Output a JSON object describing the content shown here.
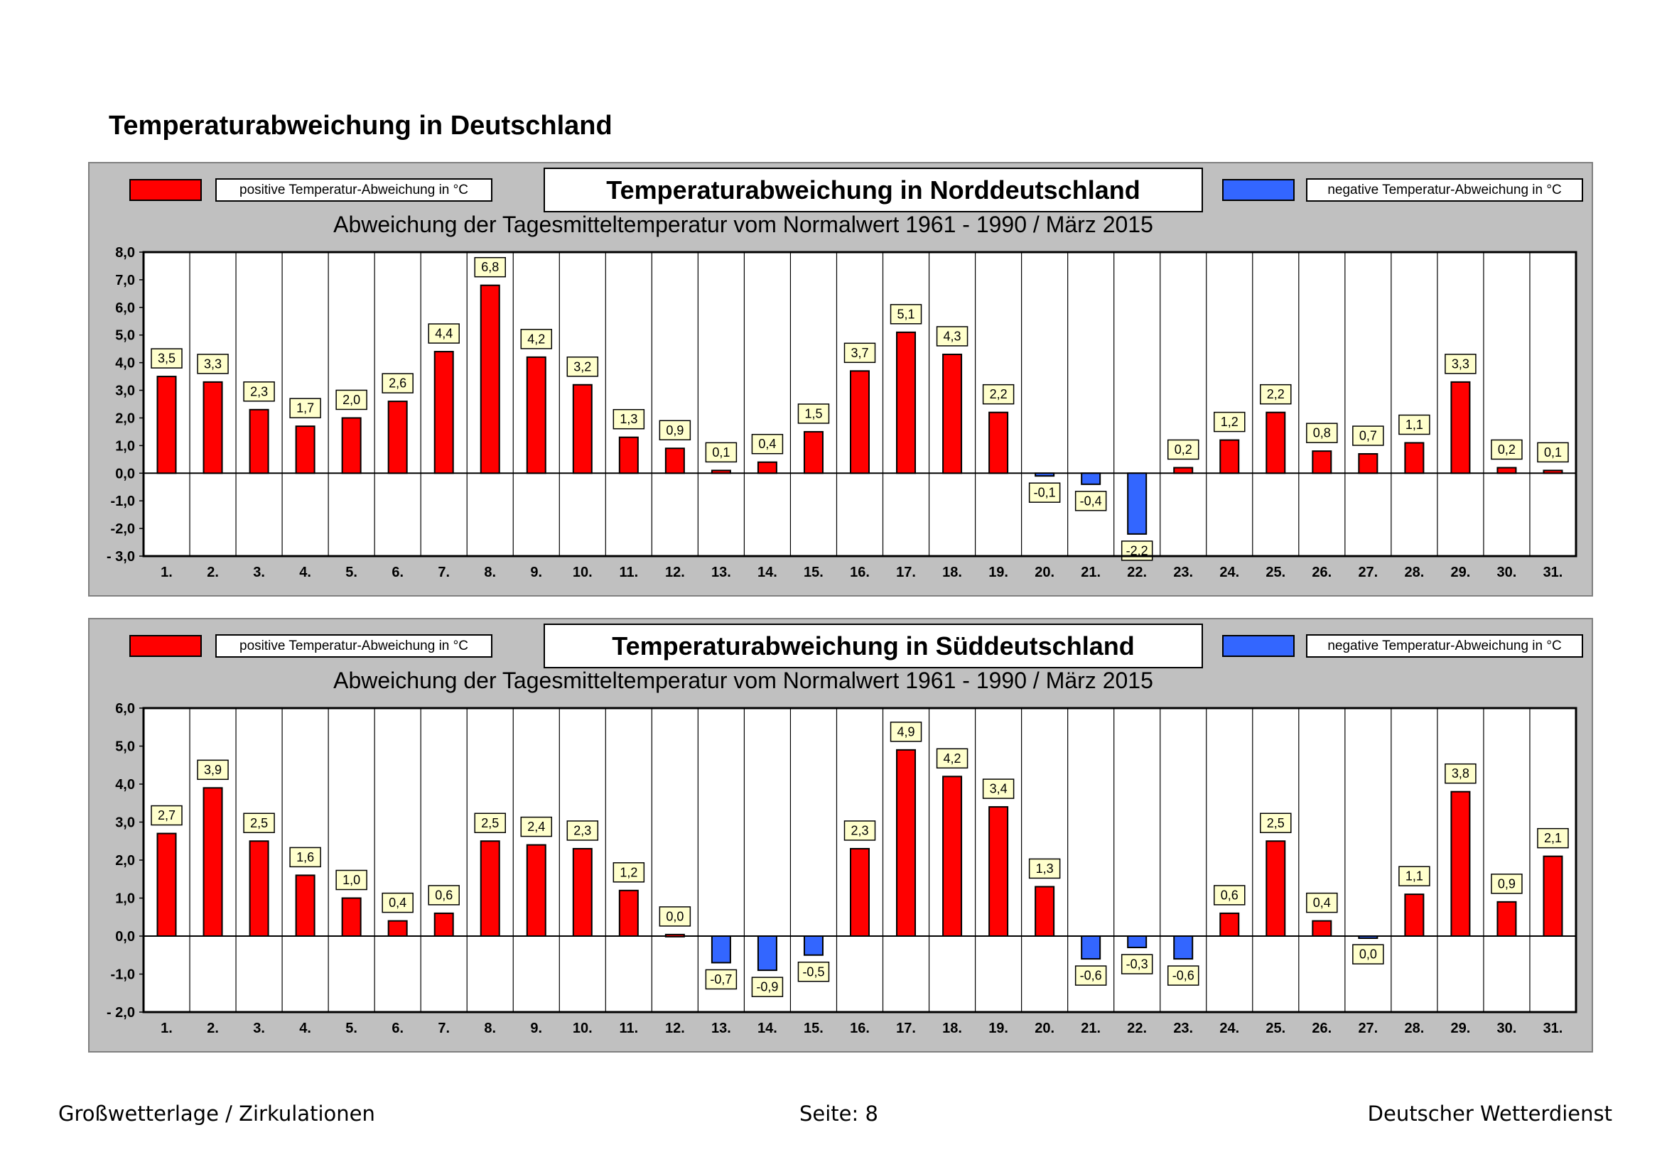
{
  "page": {
    "title": "Temperaturabweichung in Deutschland",
    "footer_left": "Großwetterlage / Zirkulationen",
    "footer_center": "Seite: 8",
    "footer_right": "Deutscher Wetterdienst"
  },
  "colors": {
    "positive": "#ff0000",
    "negative": "#3366ff"
  },
  "charts": [
    {
      "title": "Temperaturabweichung in Norddeutschland",
      "subtitle": "Abweichung der Tagesmitteltemperatur vom Normalwert 1961 - 1990  /  März 2015",
      "legend_positive": "positive Temperatur-Abweichung in °C",
      "legend_negative": "negative Temperatur-Abweichung in °C"
    },
    {
      "title": "Temperaturabweichung in Süddeutschland",
      "subtitle": "Abweichung der Tagesmitteltemperatur vom Normalwert 1961 - 1990  /  März 2015",
      "legend_positive": "positive Temperatur-Abweichung in °C",
      "legend_negative": "negative Temperatur-Abweichung in °C"
    }
  ],
  "chart_data": [
    {
      "type": "bar",
      "title": "Temperaturabweichung in Norddeutschland",
      "categories": [
        "1.",
        "2.",
        "3.",
        "4.",
        "5.",
        "6.",
        "7.",
        "8.",
        "9.",
        "10.",
        "11.",
        "12.",
        "13.",
        "14.",
        "15.",
        "16.",
        "17.",
        "18.",
        "19.",
        "20.",
        "21.",
        "22.",
        "23.",
        "24.",
        "25.",
        "26.",
        "27.",
        "28.",
        "29.",
        "30.",
        "31."
      ],
      "values": [
        3.5,
        3.3,
        2.3,
        1.7,
        2.0,
        2.6,
        4.4,
        6.8,
        4.2,
        3.2,
        1.3,
        0.9,
        0.1,
        0.4,
        1.5,
        3.7,
        5.1,
        4.3,
        2.2,
        -0.1,
        -0.4,
        -2.2,
        0.2,
        1.2,
        2.2,
        0.8,
        0.7,
        1.1,
        3.3,
        0.2,
        0.1
      ],
      "labels": [
        "3,5",
        "3,3",
        "2,3",
        "1,7",
        "2,0",
        "2,6",
        "4,4",
        "6,8",
        "4,2",
        "3,2",
        "1,3",
        "0,9",
        "0,1",
        "0,4",
        "1,5",
        "3,7",
        "5,1",
        "4,3",
        "2,2",
        "-0,1",
        "-0,4",
        "-2,2",
        "0,2",
        "1,2",
        "2,2",
        "0,8",
        "0,7",
        "1,1",
        "3,3",
        "0,2",
        "0,1"
      ],
      "ylim": [
        -3,
        8
      ],
      "yticks": [
        "8,0",
        "7,0",
        "6,0",
        "5,0",
        "4,0",
        "3,0",
        "2,0",
        "1,0",
        "0,0",
        "-1,0",
        "-2,0",
        "- 3,0"
      ],
      "ytick_values": [
        8,
        7,
        6,
        5,
        4,
        3,
        2,
        1,
        0,
        -1,
        -2,
        -3
      ]
    },
    {
      "type": "bar",
      "title": "Temperaturabweichung in Süddeutschland",
      "categories": [
        "1.",
        "2.",
        "3.",
        "4.",
        "5.",
        "6.",
        "7.",
        "8.",
        "9.",
        "10.",
        "11.",
        "12.",
        "13.",
        "14.",
        "15.",
        "16.",
        "17.",
        "18.",
        "19.",
        "20.",
        "21.",
        "22.",
        "23.",
        "24.",
        "25.",
        "26.",
        "27.",
        "28.",
        "29.",
        "30.",
        "31."
      ],
      "values": [
        2.7,
        3.9,
        2.5,
        1.6,
        1.0,
        0.4,
        0.6,
        2.5,
        2.4,
        2.3,
        1.2,
        0.04,
        -0.7,
        -0.9,
        -0.5,
        2.3,
        4.9,
        4.2,
        3.4,
        1.3,
        -0.6,
        -0.3,
        -0.6,
        0.6,
        2.5,
        0.4,
        -0.04,
        1.1,
        3.8,
        0.9,
        2.1
      ],
      "labels": [
        "2,7",
        "3,9",
        "2,5",
        "1,6",
        "1,0",
        "0,4",
        "0,6",
        "2,5",
        "2,4",
        "2,3",
        "1,2",
        "0,0",
        "-0,7",
        "-0,9",
        "-0,5",
        "2,3",
        "4,9",
        "4,2",
        "3,4",
        "1,3",
        "-0,6",
        "-0,3",
        "-0,6",
        "0,6",
        "2,5",
        "0,4",
        "0,0",
        "1,1",
        "3,8",
        "0,9",
        "2,1"
      ],
      "ylim": [
        -2,
        6
      ],
      "yticks": [
        "6,0",
        "5,0",
        "4,0",
        "3,0",
        "2,0",
        "1,0",
        "0,0",
        "-1,0",
        "- 2,0"
      ],
      "ytick_values": [
        6,
        5,
        4,
        3,
        2,
        1,
        0,
        -1,
        -2
      ]
    }
  ]
}
